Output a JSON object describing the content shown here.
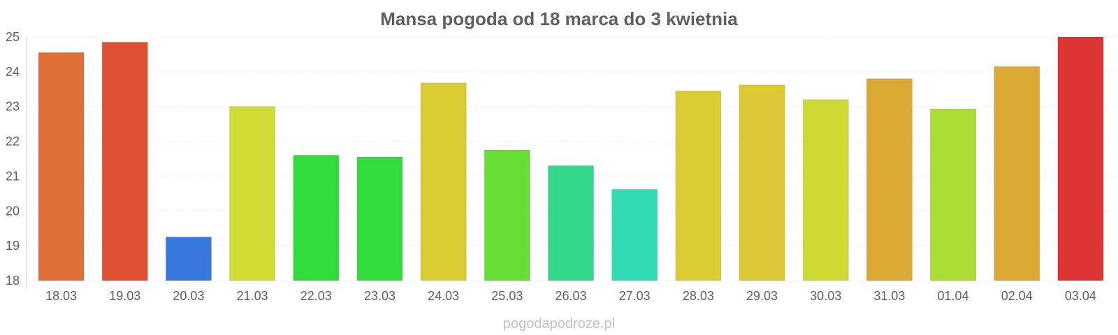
{
  "chart_data": {
    "type": "bar",
    "title": "Mansa pogoda od 18 marca do 3 kwietnia",
    "xlabel": "",
    "ylabel": "",
    "ylim": [
      18,
      25
    ],
    "yticks": [
      "18",
      "19",
      "20",
      "21",
      "22",
      "23",
      "24",
      "25"
    ],
    "grid": true,
    "categories": [
      "18.03",
      "19.03",
      "20.03",
      "21.03",
      "22.03",
      "23.03",
      "24.03",
      "25.03",
      "26.03",
      "27.03",
      "28.03",
      "29.03",
      "30.03",
      "31.03",
      "01.04",
      "02.04",
      "03.04"
    ],
    "values": [
      24.55,
      24.85,
      19.25,
      23.0,
      21.6,
      21.55,
      23.68,
      21.75,
      21.3,
      20.62,
      23.45,
      23.62,
      23.2,
      23.8,
      22.93,
      24.15,
      25.0
    ],
    "colors": [
      "#df7035",
      "#de5133",
      "#3678dc",
      "#cfdd33",
      "#30dc3b",
      "#30dc39",
      "#dccc33",
      "#68dd33",
      "#33d98a",
      "#33dbb5",
      "#dccc33",
      "#dcc934",
      "#cfdb35",
      "#dca834",
      "#aadc33",
      "#dca834",
      "#dd3434"
    ]
  },
  "watermark": "pogodapodroze.pl"
}
